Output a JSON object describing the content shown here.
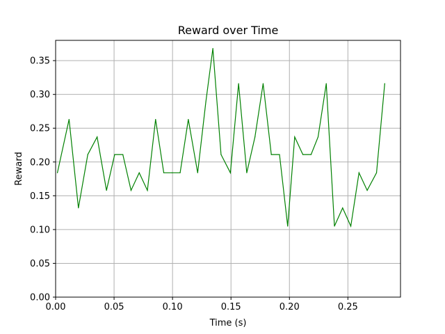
{
  "chart_data": {
    "type": "line",
    "title": "Reward over Time",
    "xlabel": "Time (s)",
    "ylabel": "Reward",
    "xlim": [
      0.0,
      0.295
    ],
    "ylim": [
      0.0,
      0.38
    ],
    "grid": true,
    "x_ticks": [
      0.0,
      0.05,
      0.1,
      0.15,
      0.2,
      0.25
    ],
    "x_tick_labels": [
      "0.00",
      "0.05",
      "0.10",
      "0.15",
      "0.20",
      "0.25"
    ],
    "y_ticks": [
      0.0,
      0.05,
      0.1,
      0.15,
      0.2,
      0.25,
      0.3,
      0.35
    ],
    "y_tick_labels": [
      "0.00",
      "0.05",
      "0.10",
      "0.15",
      "0.20",
      "0.25",
      "0.30",
      "0.35"
    ],
    "series": [
      {
        "color": "#008000",
        "x": [
          0.0015,
          0.0115,
          0.0195,
          0.0275,
          0.0355,
          0.0435,
          0.0505,
          0.0575,
          0.0645,
          0.0715,
          0.0785,
          0.0855,
          0.0925,
          0.0995,
          0.1065,
          0.1135,
          0.1215,
          0.1285,
          0.1345,
          0.1415,
          0.1495,
          0.1565,
          0.1635,
          0.1705,
          0.1775,
          0.1845,
          0.1915,
          0.1985,
          0.2045,
          0.2115,
          0.2185,
          0.2245,
          0.2315,
          0.2385,
          0.2455,
          0.2525,
          0.2595,
          0.2665,
          0.2745,
          0.2815
        ],
        "values": [
          0.184,
          0.263,
          0.132,
          0.211,
          0.237,
          0.158,
          0.211,
          0.211,
          0.158,
          0.184,
          0.158,
          0.263,
          0.184,
          0.184,
          0.184,
          0.263,
          0.184,
          0.289,
          0.368,
          0.211,
          0.184,
          0.316,
          0.184,
          0.237,
          0.316,
          0.211,
          0.211,
          0.105,
          0.237,
          0.211,
          0.211,
          0.237,
          0.316,
          0.105,
          0.132,
          0.105,
          0.184,
          0.158,
          0.184,
          0.316
        ]
      }
    ]
  }
}
